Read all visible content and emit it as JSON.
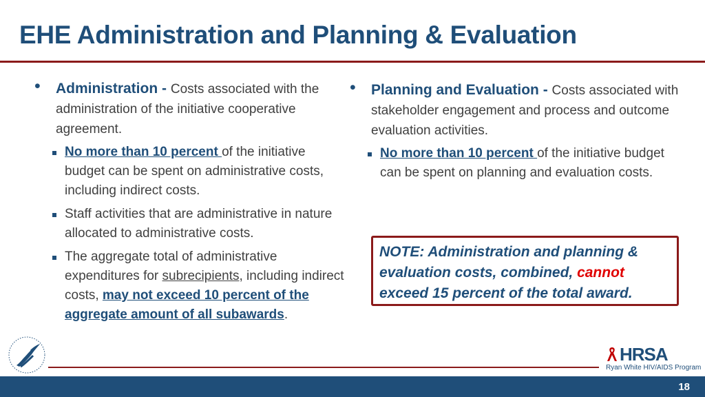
{
  "slide": {
    "title": "EHE Administration and Planning & Evaluation",
    "page_number": "18",
    "colors": {
      "accent_blue": "#1f4e79",
      "rule_red": "#8b1a1a",
      "alert_red": "#e00000"
    }
  },
  "left": {
    "heading": "Administration - ",
    "text": "Costs associated with the administration of the initiative cooperative agreement.",
    "bullets": [
      {
        "em": "No more than 10 percent ",
        "text": "of the initiative budget can be spent on administrative costs, including indirect costs."
      },
      {
        "text": "Staff activities that are administrative in nature allocated to administrative costs."
      },
      {
        "pre": "The aggregate total of administrative expenditures for ",
        "link": "subrecipients",
        "mid": ", including indirect costs, ",
        "em": "may not exceed 10 percent of the aggregate amount of all subawards",
        "post": "."
      }
    ]
  },
  "right": {
    "heading": "Planning and Evaluation - ",
    "text": "Costs associated with stakeholder engagement and process and outcome evaluation activities.",
    "bullets": [
      {
        "em": "No more than 10 percent ",
        "text": "of the initiative budget can be spent on planning and evaluation costs."
      }
    ]
  },
  "note": {
    "pre": "NOTE: Administration and planning & evaluation costs, combined, ",
    "red": "cannot",
    "post": " exceed 15 percent of the total award."
  },
  "logos": {
    "hhs_icon": "hhs-eagle-seal-icon",
    "hrsa_icon": "ribbon-icon",
    "hrsa_word": "HRSA",
    "hrsa_program": "Ryan White HIV/AIDS Program"
  }
}
